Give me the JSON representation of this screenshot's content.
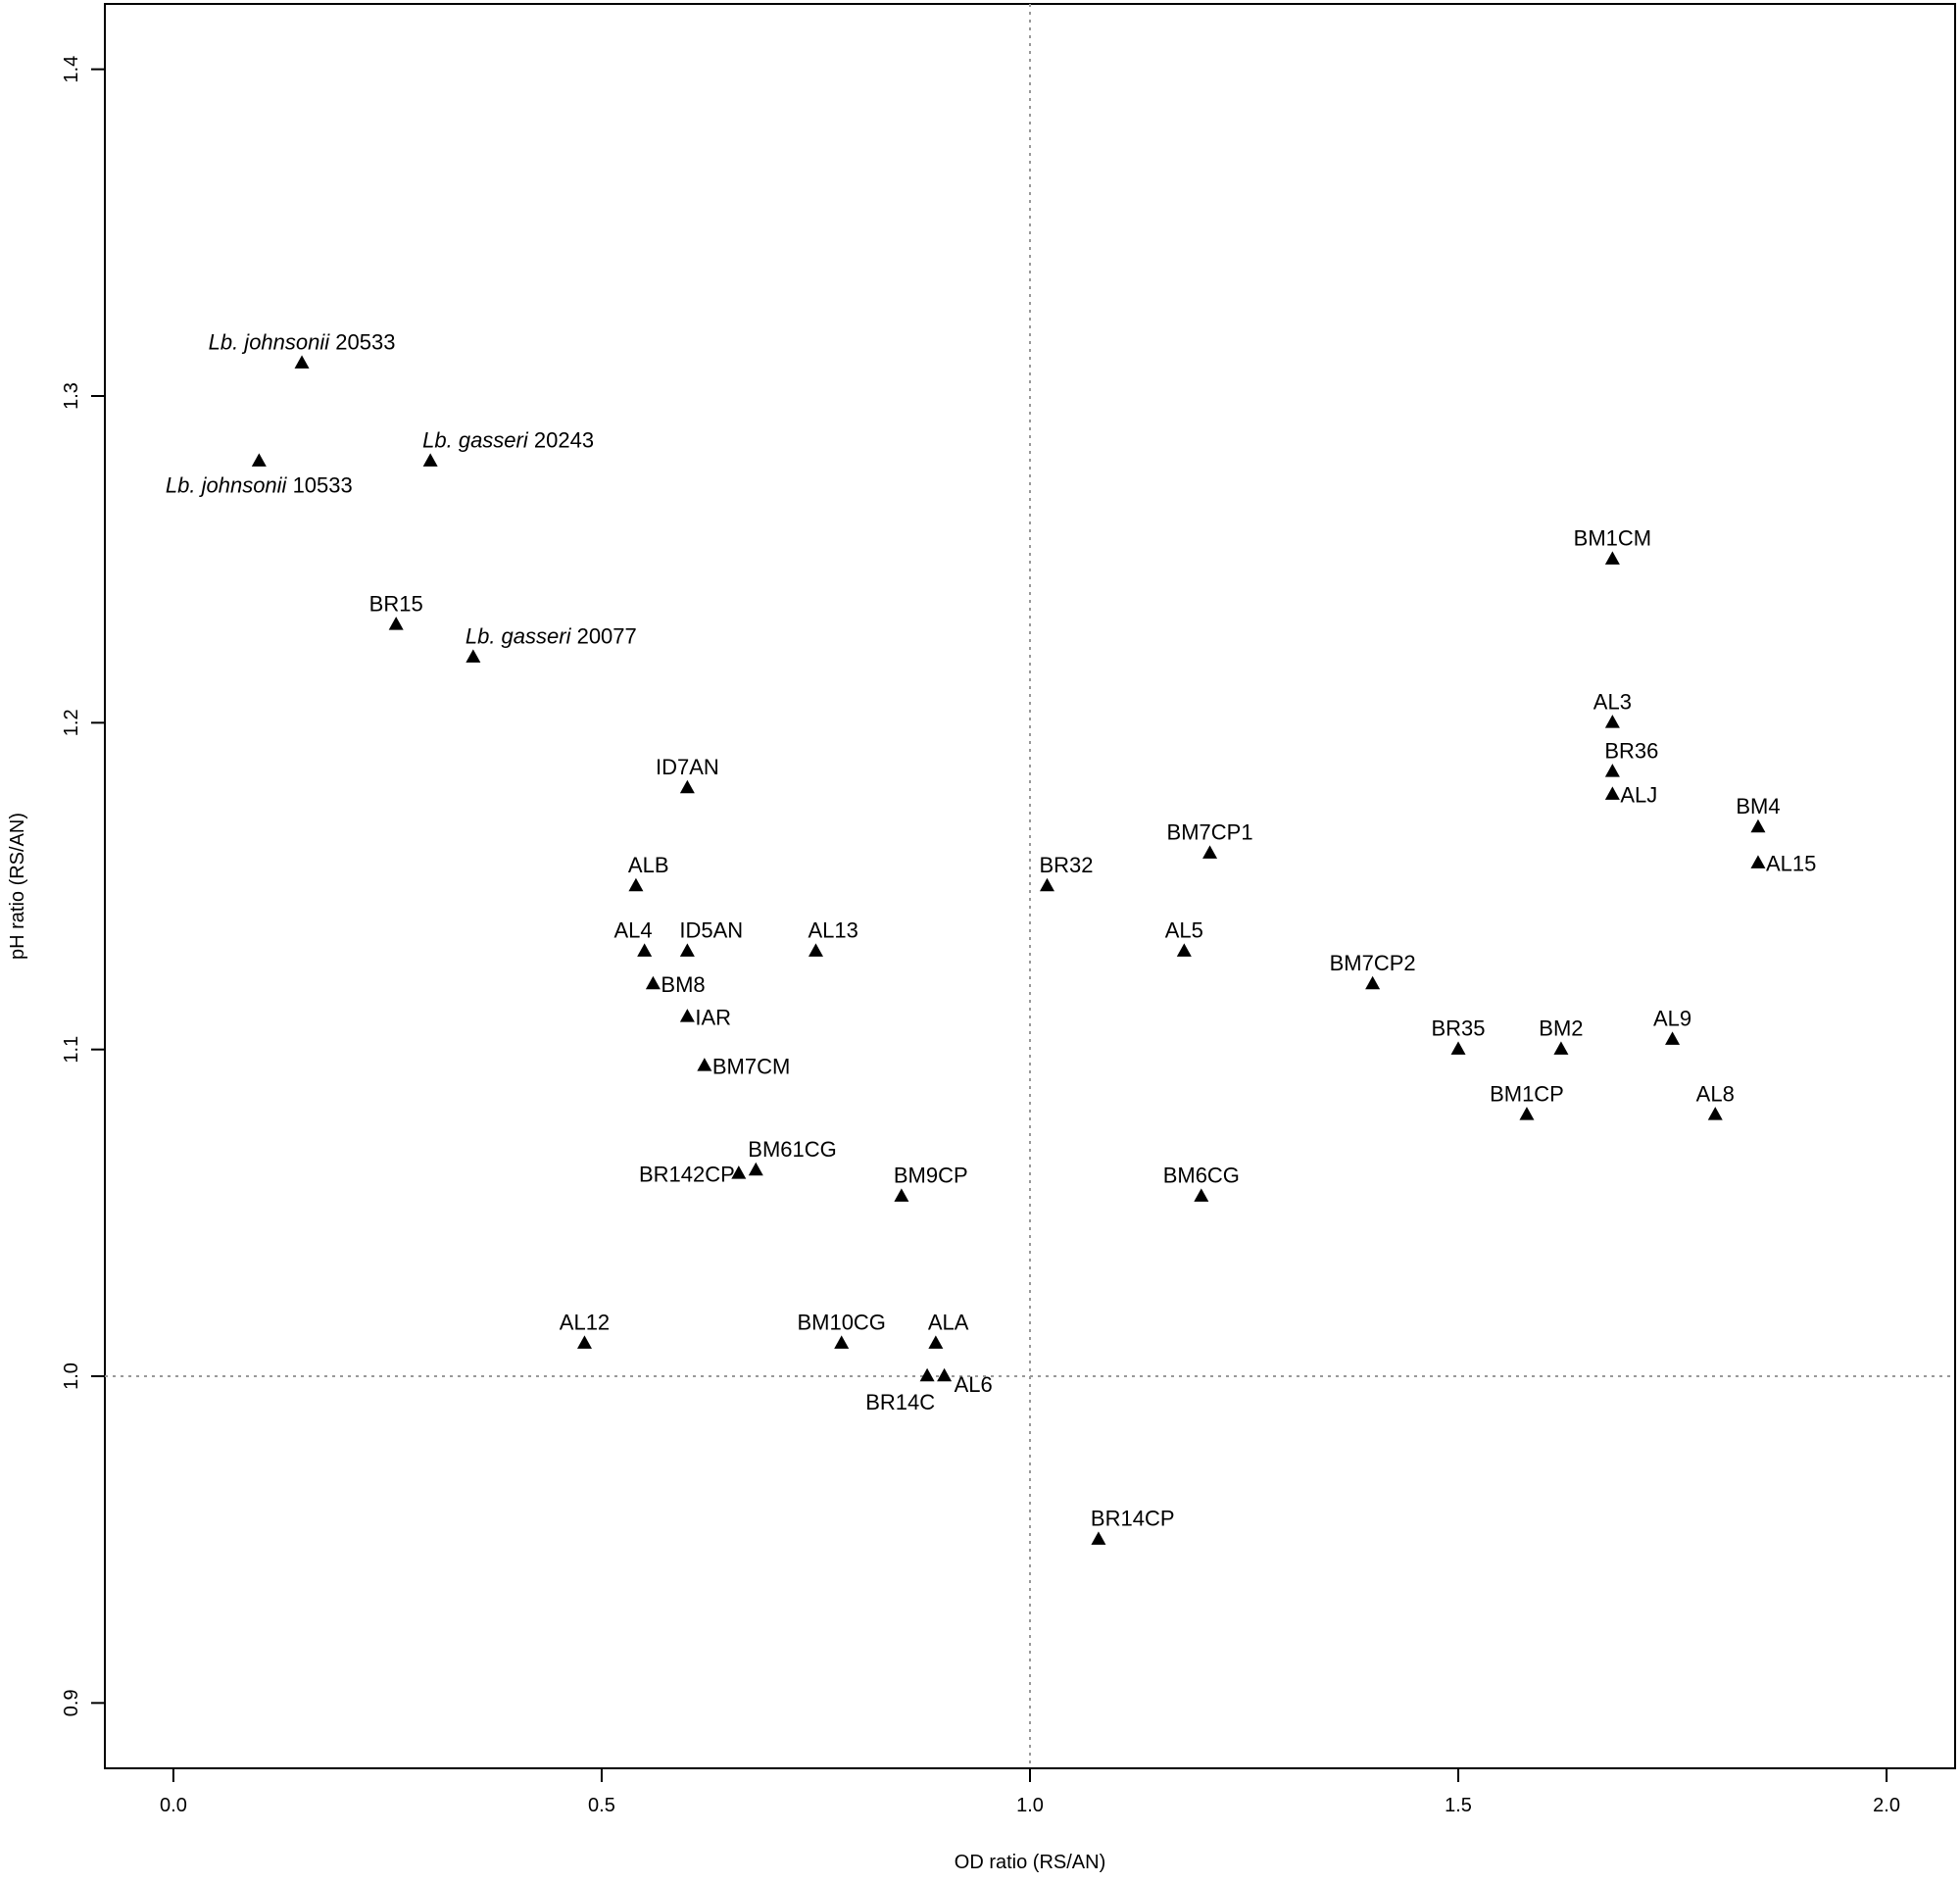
{
  "chart_data": {
    "type": "scatter",
    "marker": "triangle",
    "xlabel": "OD ratio (RS/AN)",
    "ylabel": "pH ratio (RS/AN)",
    "xlim": [
      -0.08,
      2.08
    ],
    "ylim": [
      0.88,
      1.42
    ],
    "xticks": [
      "0.0",
      "0.5",
      "1.0",
      "1.5",
      "2.0"
    ],
    "yticks": [
      "0.9",
      "1.0",
      "1.1",
      "1.2",
      "1.3",
      "1.4"
    ],
    "reference_lines": {
      "x": 1.0,
      "y": 1.0,
      "style": "dotted"
    },
    "points": [
      {
        "italic": "Lb. johnsonii",
        "label": "20533",
        "x": 0.15,
        "y": 1.31,
        "pos": "above"
      },
      {
        "italic": "Lb. johnsonii",
        "label": "10533",
        "x": 0.1,
        "y": 1.28,
        "pos": "below"
      },
      {
        "italic": "Lb. gasseri",
        "label": "20243",
        "x": 0.3,
        "y": 1.28,
        "pos": "above-right"
      },
      {
        "italic": "",
        "label": "BR15",
        "x": 0.26,
        "y": 1.23,
        "pos": "above"
      },
      {
        "italic": "Lb. gasseri",
        "label": "20077",
        "x": 0.35,
        "y": 1.22,
        "pos": "above-right"
      },
      {
        "italic": "",
        "label": "ID7AN",
        "x": 0.6,
        "y": 1.18,
        "pos": "above"
      },
      {
        "italic": "",
        "label": "ALB",
        "x": 0.54,
        "y": 1.15,
        "pos": "above-right"
      },
      {
        "italic": "",
        "label": "AL4",
        "x": 0.55,
        "y": 1.13,
        "pos": "above-left"
      },
      {
        "italic": "",
        "label": "ID5AN",
        "x": 0.6,
        "y": 1.13,
        "pos": "above-right"
      },
      {
        "italic": "",
        "label": "AL13",
        "x": 0.75,
        "y": 1.13,
        "pos": "above-right"
      },
      {
        "italic": "",
        "label": "BM8",
        "x": 0.56,
        "y": 1.12,
        "pos": "right"
      },
      {
        "italic": "",
        "label": "IAR",
        "x": 0.6,
        "y": 1.11,
        "pos": "right"
      },
      {
        "italic": "",
        "label": "BM7CM",
        "x": 0.62,
        "y": 1.095,
        "pos": "right"
      },
      {
        "italic": "",
        "label": "BR142CP",
        "x": 0.66,
        "y": 1.062,
        "pos": "left"
      },
      {
        "italic": "",
        "label": "BM61CG",
        "x": 0.68,
        "y": 1.063,
        "pos": "above-right"
      },
      {
        "italic": "",
        "label": "BM9CP",
        "x": 0.85,
        "y": 1.055,
        "pos": "above-right"
      },
      {
        "italic": "",
        "label": "AL12",
        "x": 0.48,
        "y": 1.01,
        "pos": "above"
      },
      {
        "italic": "",
        "label": "BM10CG",
        "x": 0.78,
        "y": 1.01,
        "pos": "above"
      },
      {
        "italic": "",
        "label": "ALA",
        "x": 0.89,
        "y": 1.01,
        "pos": "above-right"
      },
      {
        "italic": "",
        "label": "BR14C",
        "x": 0.88,
        "y": 1.0,
        "pos": "below-left"
      },
      {
        "italic": "",
        "label": "AL6",
        "x": 0.9,
        "y": 1.0,
        "pos": "below-right"
      },
      {
        "italic": "",
        "label": "BR32",
        "x": 1.02,
        "y": 1.15,
        "pos": "above-right"
      },
      {
        "italic": "",
        "label": "BM7CP1",
        "x": 1.21,
        "y": 1.16,
        "pos": "above"
      },
      {
        "italic": "",
        "label": "AL5",
        "x": 1.18,
        "y": 1.13,
        "pos": "above"
      },
      {
        "italic": "",
        "label": "BM7CP2",
        "x": 1.4,
        "y": 1.12,
        "pos": "above"
      },
      {
        "italic": "",
        "label": "BM6CG",
        "x": 1.2,
        "y": 1.055,
        "pos": "above"
      },
      {
        "italic": "",
        "label": "BR14CP",
        "x": 1.08,
        "y": 0.95,
        "pos": "above-right"
      },
      {
        "italic": "",
        "label": "BM1CM",
        "x": 1.68,
        "y": 1.25,
        "pos": "above"
      },
      {
        "italic": "",
        "label": "AL3",
        "x": 1.68,
        "y": 1.2,
        "pos": "above"
      },
      {
        "italic": "",
        "label": "BR36",
        "x": 1.68,
        "y": 1.185,
        "pos": "above-right"
      },
      {
        "italic": "",
        "label": "ALJ",
        "x": 1.68,
        "y": 1.178,
        "pos": "right"
      },
      {
        "italic": "",
        "label": "BM4",
        "x": 1.85,
        "y": 1.168,
        "pos": "above"
      },
      {
        "italic": "",
        "label": "AL15",
        "x": 1.85,
        "y": 1.157,
        "pos": "right"
      },
      {
        "italic": "",
        "label": "BR35",
        "x": 1.5,
        "y": 1.1,
        "pos": "above"
      },
      {
        "italic": "",
        "label": "BM2",
        "x": 1.62,
        "y": 1.1,
        "pos": "above"
      },
      {
        "italic": "",
        "label": "AL9",
        "x": 1.75,
        "y": 1.103,
        "pos": "above"
      },
      {
        "italic": "",
        "label": "BM1CP",
        "x": 1.58,
        "y": 1.08,
        "pos": "above"
      },
      {
        "italic": "",
        "label": "AL8",
        "x": 1.8,
        "y": 1.08,
        "pos": "above"
      }
    ]
  }
}
